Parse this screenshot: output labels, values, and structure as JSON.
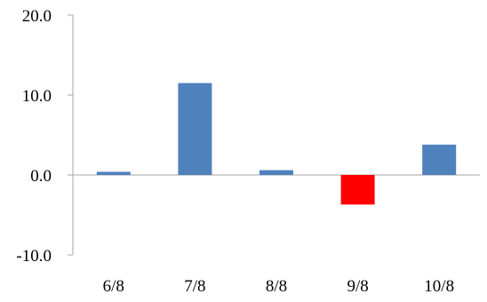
{
  "chart_data": {
    "type": "bar",
    "categories": [
      "6/8",
      "7/8",
      "8/8",
      "9/8",
      "10/8"
    ],
    "values": [
      0.4,
      11.5,
      0.6,
      -3.7,
      3.8
    ],
    "bar_colors": [
      "#4F81BD",
      "#4F81BD",
      "#4F81BD",
      "#FF0000",
      "#4F81BD"
    ],
    "ylim": [
      -10,
      20
    ],
    "yticks": [
      "20.0",
      "10.0",
      "0.0",
      "-10.0"
    ],
    "ytick_values": [
      20,
      10,
      0,
      -10
    ],
    "grid": false,
    "legend": "none",
    "axis_color": "#A6A6A6"
  }
}
